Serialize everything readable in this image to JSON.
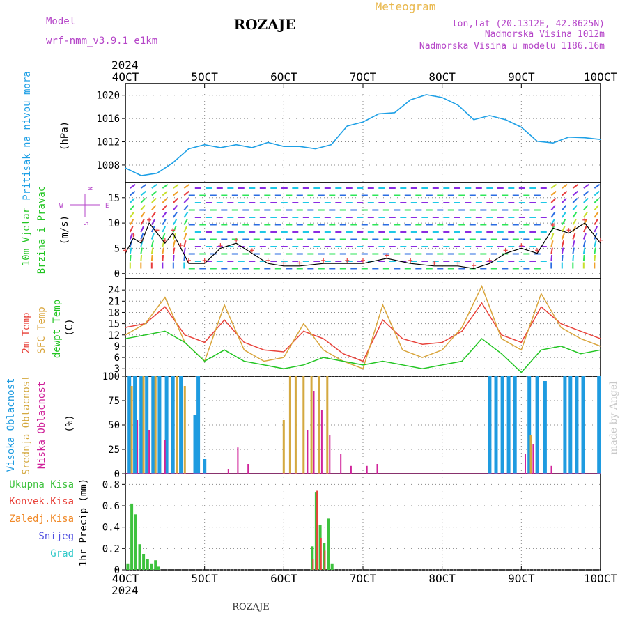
{
  "header": {
    "model_label": "Model",
    "model_name": "wrf-nmm_v3.9.1  e1km",
    "title": "ROZAJE",
    "meteogram": "Meteogram",
    "lonlat": "lon,lat (20.1312E, 42.8625N)",
    "elevation": "Nadmorska Visina 1012m",
    "model_elevation": "Nadmorska Visina u modelu 1186.16m",
    "year_top": "2024",
    "footer_year": "2024",
    "footer_name": "ROZAJE",
    "credit": "made by Angel"
  },
  "colors": {
    "pressure": "#1ea0e6",
    "wind_green": "#22c522",
    "temp2m": "#e8423a",
    "sfc": "#d9a53c",
    "dew": "#22c522",
    "high_cloud": "#1e9be0",
    "mid_cloud": "#d4a940",
    "low_cloud": "#d0239a",
    "precip_total": "#3ec23e",
    "precip_conv": "#e8423a",
    "freezing": "#f08a2a",
    "snow": "#5050e0",
    "hail": "#2ec8c8",
    "wind_axis_label": "#b545c8"
  },
  "axis": {
    "x_ticks": [
      "4OCT",
      "5OCT",
      "6OCT",
      "7OCT",
      "8OCT",
      "9OCT",
      "10OCT"
    ]
  },
  "panel_labels": {
    "pressure": [
      "Pritisak na nivou mora",
      "(hPa)"
    ],
    "wind": [
      "10m Vjetar",
      "Brzina i Pravac",
      "(m/s)"
    ],
    "wind_compass": [
      "N",
      "W",
      "E",
      "S"
    ],
    "temp": [
      "2m Temp",
      "SFC Temp",
      "dewpt Temp",
      "(C)"
    ],
    "cloud": [
      "Visoka Oblacnost",
      "Srednja Oblacnost",
      "Niska Oblacnost",
      "(%)"
    ],
    "precip_legend": [
      "Ukupna Kisa",
      "Konvek.Kisa",
      "Zaledj.Kisa",
      "Snijeg",
      "Grad"
    ],
    "precip_units": "1hr Precip (mm)"
  },
  "chart_data": [
    {
      "type": "line",
      "panel": "pressure",
      "ylim": [
        1005,
        1022
      ],
      "yticks": [
        "1008",
        "1012",
        "1016",
        "1020"
      ],
      "x_days": [
        4.0,
        4.2,
        4.4,
        4.6,
        4.8,
        5.0,
        5.2,
        5.4,
        5.6,
        5.8,
        6.0,
        6.2,
        6.4,
        6.6,
        6.8,
        7.0,
        7.2,
        7.4,
        7.6,
        7.8,
        8.0,
        8.2,
        8.4,
        8.6,
        8.8,
        9.0,
        9.2,
        9.4,
        9.6,
        9.8,
        10.0
      ],
      "series": [
        {
          "values": [
            1007.5,
            1006.2,
            1006.6,
            1008.4,
            1010.8,
            1011.5,
            1011.0,
            1011.5,
            1011.0,
            1011.9,
            1011.2,
            1011.2,
            1010.8,
            1011.5,
            1014.7,
            1015.4,
            1016.8,
            1017.0,
            1019.2,
            1020.1,
            1019.6,
            1018.3,
            1015.8,
            1016.5,
            1015.8,
            1014.5,
            1012.1,
            1011.8,
            1012.8,
            1012.7,
            1012.4
          ]
        }
      ]
    },
    {
      "type": "line",
      "panel": "wind",
      "ylim": [
        -1,
        18
      ],
      "yticks": [
        "0",
        "5",
        "10",
        "15"
      ],
      "x_days": [
        4.0,
        4.1,
        4.2,
        4.3,
        4.4,
        4.5,
        4.6,
        4.7,
        4.8,
        5.0,
        5.2,
        5.4,
        5.6,
        5.8,
        6.0,
        6.2,
        6.5,
        6.8,
        7.0,
        7.3,
        7.6,
        7.9,
        8.2,
        8.4,
        8.6,
        8.8,
        9.0,
        9.2,
        9.4,
        9.6,
        9.8,
        10.0
      ],
      "series": [
        {
          "values": [
            4,
            7,
            6,
            10,
            8,
            6,
            8,
            5,
            2,
            2,
            5,
            6,
            4,
            2,
            1.5,
            1.5,
            2,
            2,
            2,
            3,
            2,
            1.5,
            1.5,
            1,
            2,
            4,
            5,
            4,
            9,
            8,
            10,
            6
          ]
        }
      ]
    },
    {
      "type": "line",
      "panel": "temperature",
      "ylim": [
        1,
        27
      ],
      "yticks": [
        "3",
        "6",
        "9",
        "12",
        "15",
        "18",
        "21",
        "24"
      ],
      "x_days": [
        4.0,
        4.25,
        4.5,
        4.75,
        5.0,
        5.25,
        5.5,
        5.75,
        6.0,
        6.25,
        6.5,
        6.75,
        7.0,
        7.25,
        7.5,
        7.75,
        8.0,
        8.25,
        8.5,
        8.75,
        9.0,
        9.25,
        9.5,
        9.75,
        10.0
      ],
      "series": [
        {
          "name": "2m Temp",
          "values": [
            14,
            15,
            19.5,
            12,
            10,
            16,
            10,
            8,
            7.5,
            13,
            11,
            7,
            5,
            16,
            11,
            9.5,
            10,
            13,
            20.5,
            12,
            10,
            19.5,
            15,
            13,
            11
          ]
        },
        {
          "name": "SFC Temp",
          "values": [
            12,
            15,
            22,
            10,
            5,
            20,
            8,
            5,
            6,
            15,
            8,
            5,
            3,
            20,
            8,
            6,
            8,
            14,
            25,
            11,
            8,
            23,
            14,
            11,
            9
          ]
        },
        {
          "name": "dewpt Temp",
          "values": [
            11,
            12,
            13,
            10,
            5,
            8,
            5,
            4,
            3,
            4,
            6,
            5,
            4,
            5,
            4,
            3,
            4,
            5,
            11,
            7,
            2,
            8,
            9,
            7,
            8
          ]
        }
      ]
    },
    {
      "type": "bar",
      "panel": "cloud",
      "ylim": [
        0,
        100
      ],
      "yticks": [
        "0",
        "25",
        "50",
        "75",
        "100"
      ],
      "series": [
        {
          "name": "Visoka Oblacnost",
          "bars": [
            [
              4.05,
              100
            ],
            [
              4.12,
              100
            ],
            [
              4.2,
              100
            ],
            [
              4.27,
              100
            ],
            [
              4.35,
              100
            ],
            [
              4.43,
              100
            ],
            [
              4.52,
              100
            ],
            [
              4.6,
              100
            ],
            [
              4.7,
              100
            ],
            [
              4.92,
              100
            ],
            [
              4.88,
              60
            ],
            [
              5.0,
              15
            ],
            [
              8.6,
              100
            ],
            [
              8.68,
              100
            ],
            [
              8.76,
              100
            ],
            [
              8.84,
              100
            ],
            [
              8.92,
              100
            ],
            [
              9.1,
              100
            ],
            [
              9.2,
              100
            ],
            [
              9.3,
              95
            ],
            [
              9.55,
              100
            ],
            [
              9.62,
              100
            ],
            [
              9.7,
              100
            ],
            [
              9.78,
              100
            ],
            [
              9.98,
              100
            ]
          ]
        },
        {
          "name": "Srednja Oblacnost",
          "bars": [
            [
              4.08,
              90
            ],
            [
              4.23,
              100
            ],
            [
              4.38,
              100
            ],
            [
              4.65,
              100
            ],
            [
              4.75,
              90
            ],
            [
              6.0,
              55
            ],
            [
              6.08,
              100
            ],
            [
              6.15,
              100
            ],
            [
              6.25,
              100
            ],
            [
              6.35,
              100
            ],
            [
              6.45,
              100
            ],
            [
              6.55,
              100
            ],
            [
              9.12,
              40
            ]
          ]
        },
        {
          "name": "Niska Oblacnost",
          "bars": [
            [
              4.15,
              55
            ],
            [
              4.3,
              45
            ],
            [
              4.5,
              35
            ],
            [
              5.3,
              5
            ],
            [
              5.42,
              27
            ],
            [
              5.55,
              10
            ],
            [
              6.3,
              45
            ],
            [
              6.38,
              85
            ],
            [
              6.48,
              65
            ],
            [
              6.58,
              40
            ],
            [
              6.72,
              20
            ],
            [
              6.85,
              8
            ],
            [
              7.05,
              8
            ],
            [
              7.18,
              10
            ],
            [
              9.05,
              20
            ],
            [
              9.15,
              30
            ],
            [
              9.38,
              8
            ]
          ]
        }
      ]
    },
    {
      "type": "bar",
      "panel": "precipitation",
      "ylim": [
        0,
        0.9
      ],
      "yticks": [
        "0",
        "0.2",
        "0.4",
        "0.6",
        "0.8"
      ],
      "series": [
        {
          "name": "Ukupna Kisa",
          "bars": [
            [
              4.03,
              0.06
            ],
            [
              4.08,
              0.62
            ],
            [
              4.13,
              0.52
            ],
            [
              4.18,
              0.24
            ],
            [
              4.23,
              0.15
            ],
            [
              4.28,
              0.1
            ],
            [
              4.33,
              0.06
            ],
            [
              4.38,
              0.09
            ],
            [
              4.42,
              0.03
            ],
            [
              6.36,
              0.22
            ],
            [
              6.41,
              0.73
            ],
            [
              6.46,
              0.42
            ],
            [
              6.51,
              0.25
            ],
            [
              6.56,
              0.48
            ],
            [
              6.61,
              0.06
            ]
          ]
        },
        {
          "name": "Konvek.Kisa",
          "bars": [
            [
              6.37,
              0.1
            ],
            [
              6.42,
              0.74
            ],
            [
              6.47,
              0.3
            ],
            [
              6.52,
              0.18
            ]
          ]
        }
      ]
    }
  ]
}
